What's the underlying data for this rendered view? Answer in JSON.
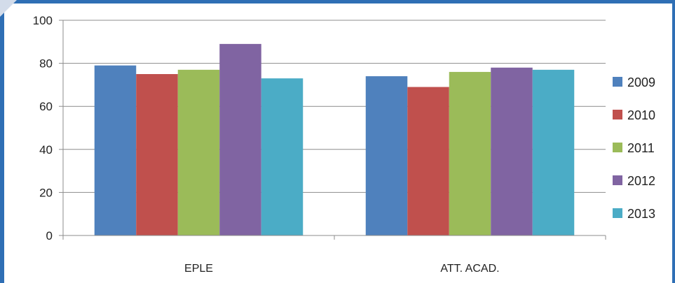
{
  "chart_data": {
    "type": "bar",
    "categories": [
      "EPLE",
      "ATT. ACAD."
    ],
    "series": [
      {
        "name": "2009",
        "values": [
          79,
          74
        ],
        "color": "#4f81bd"
      },
      {
        "name": "2010",
        "values": [
          75,
          69
        ],
        "color": "#c0504d"
      },
      {
        "name": "2011",
        "values": [
          77,
          76
        ],
        "color": "#9bbb59"
      },
      {
        "name": "2012",
        "values": [
          89,
          78
        ],
        "color": "#8064a2"
      },
      {
        "name": "2013",
        "values": [
          73,
          77
        ],
        "color": "#4bacc6"
      }
    ],
    "title": "",
    "xlabel": "",
    "ylabel": "",
    "ylim": [
      0,
      100
    ],
    "yticks": [
      0,
      20,
      40,
      60,
      80,
      100
    ],
    "grid": true,
    "legend": "right"
  }
}
